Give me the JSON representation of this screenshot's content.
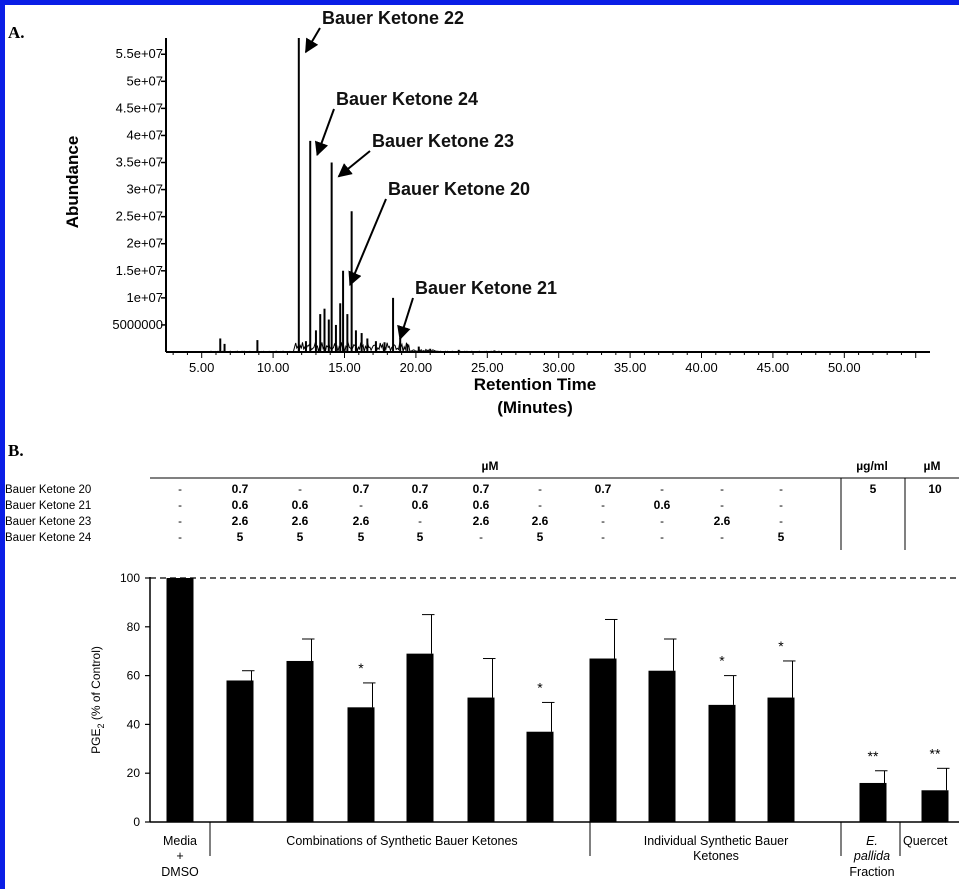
{
  "chart_data": [
    {
      "panel": "A.",
      "type": "line",
      "xlabel": "Retention Time",
      "xlabel2": "(Minutes)",
      "ylabel": "Abundance",
      "xlim": [
        2.5,
        56
      ],
      "ylim": [
        0,
        58000000
      ],
      "x_ticks": [
        5,
        10,
        15,
        20,
        25,
        30,
        35,
        40,
        45,
        50
      ],
      "x_tick_labels": [
        "5.00",
        "10.00",
        "15.00",
        "20.00",
        "25.00",
        "30.00",
        "35.00",
        "40.00",
        "45.00",
        "50.00"
      ],
      "y_ticks": [
        5000000,
        10000000,
        15000000,
        20000000,
        25000000,
        30000000,
        35000000,
        40000000,
        45000000,
        50000000,
        55000000
      ],
      "y_tick_labels": [
        "5000000",
        "1e+07",
        "1.5e+07",
        "2e+07",
        "2.5e+07",
        "3e+07",
        "3.5e+07",
        "4e+07",
        "4.5e+07",
        "5e+07",
        "5.5e+07"
      ],
      "peaks": [
        {
          "x": 6.3,
          "y": 2500000
        },
        {
          "x": 6.6,
          "y": 1500000
        },
        {
          "x": 8.9,
          "y": 2200000
        },
        {
          "x": 11.8,
          "y": 58000000
        },
        {
          "x": 12.3,
          "y": 2000000
        },
        {
          "x": 12.6,
          "y": 39000000
        },
        {
          "x": 13.0,
          "y": 4000000
        },
        {
          "x": 13.3,
          "y": 7000000
        },
        {
          "x": 13.6,
          "y": 8000000
        },
        {
          "x": 13.9,
          "y": 6000000
        },
        {
          "x": 14.1,
          "y": 35000000
        },
        {
          "x": 14.4,
          "y": 5000000
        },
        {
          "x": 14.7,
          "y": 9000000
        },
        {
          "x": 14.9,
          "y": 15000000
        },
        {
          "x": 15.2,
          "y": 7000000
        },
        {
          "x": 15.5,
          "y": 26000000
        },
        {
          "x": 15.8,
          "y": 4000000
        },
        {
          "x": 16.2,
          "y": 3500000
        },
        {
          "x": 16.6,
          "y": 2500000
        },
        {
          "x": 17.2,
          "y": 2000000
        },
        {
          "x": 17.8,
          "y": 1800000
        },
        {
          "x": 18.4,
          "y": 10000000
        },
        {
          "x": 18.9,
          "y": 2500000
        },
        {
          "x": 19.4,
          "y": 1500000
        },
        {
          "x": 20.2,
          "y": 1000000
        },
        {
          "x": 21.0,
          "y": 600000
        },
        {
          "x": 23.0,
          "y": 400000
        },
        {
          "x": 25.5,
          "y": 300000
        }
      ],
      "annotations": [
        {
          "text": "Bauer Ketone 22",
          "x": 11.8,
          "y": 58000000
        },
        {
          "text": "Bauer Ketone 24",
          "x": 12.6,
          "y": 39000000
        },
        {
          "text": "Bauer Ketone 23",
          "x": 14.1,
          "y": 35000000
        },
        {
          "text": "Bauer Ketone 20",
          "x": 14.9,
          "y": 15000000
        },
        {
          "text": "Bauer Ketone 21",
          "x": 18.4,
          "y": 5000000
        }
      ]
    },
    {
      "panel": "B.",
      "type": "bar",
      "ylabel": "PGE",
      "ylabel_sub": "2",
      "ylabel_rest": " (% of Control)",
      "ylim": [
        0,
        100
      ],
      "y_ticks": [
        0,
        20,
        40,
        60,
        80,
        100
      ],
      "reference_line": 100,
      "values": [
        100,
        58,
        66,
        47,
        69,
        51,
        37,
        67,
        62,
        48,
        51,
        16,
        13
      ],
      "errors": [
        0,
        4,
        9,
        10,
        16,
        16,
        12,
        16,
        13,
        12,
        15,
        5,
        9
      ],
      "significance": [
        "",
        "",
        "",
        "*",
        "",
        "",
        "*",
        "",
        "",
        "*",
        "*",
        "**",
        "**"
      ],
      "units": {
        "um": "µM",
        "ugml": "µg/ml",
        "um2": "µM"
      },
      "table": [
        {
          "label": "Bauer Ketone 20",
          "values": [
            "-",
            "0.7",
            "-",
            "0.7",
            "0.7",
            "0.7",
            "-",
            "0.7",
            "-",
            "-",
            "-",
            "5",
            "10"
          ]
        },
        {
          "label": "Bauer Ketone 21",
          "values": [
            "-",
            "0.6",
            "0.6",
            "-",
            "0.6",
            "0.6",
            "-",
            "-",
            "0.6",
            "-",
            "-",
            "",
            ""
          ]
        },
        {
          "label": "Bauer Ketone 23",
          "values": [
            "-",
            "2.6",
            "2.6",
            "2.6",
            "-",
            "2.6",
            "2.6",
            "-",
            "-",
            "2.6",
            "-",
            "",
            ""
          ]
        },
        {
          "label": "Bauer Ketone 24",
          "values": [
            "-",
            "5",
            "5",
            "5",
            "5",
            "-",
            "5",
            "-",
            "-",
            "-",
            "5",
            "",
            ""
          ]
        }
      ],
      "groups": {
        "media": [
          "Media",
          "+",
          "DMSO"
        ],
        "combos": "Combinations of Synthetic Bauer Ketones",
        "individual": [
          "Individual Synthetic Bauer",
          "Ketones"
        ],
        "epallida": [
          "E.",
          "pallida",
          "Fraction"
        ],
        "quercetin": "Quercet"
      }
    }
  ]
}
